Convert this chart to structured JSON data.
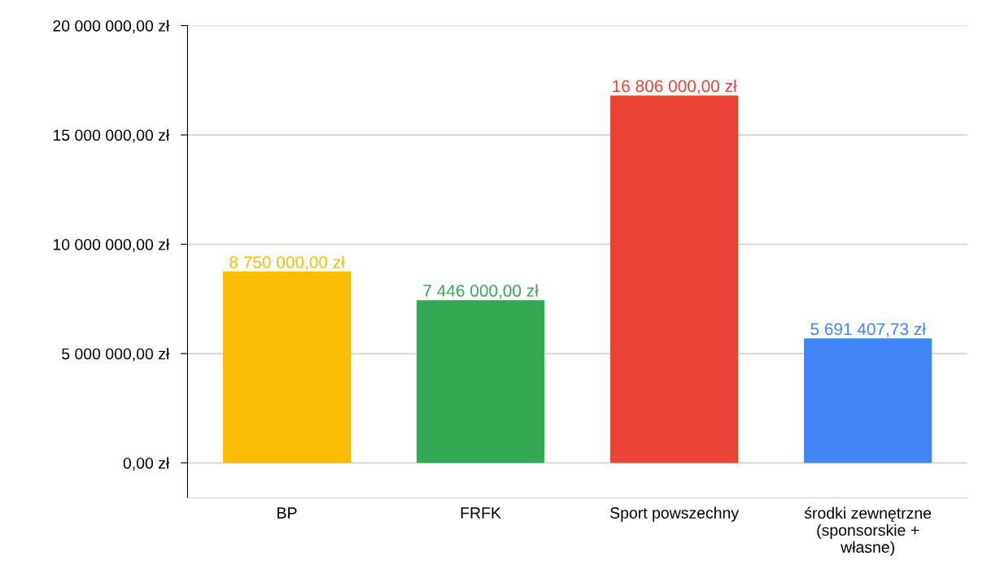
{
  "chart_data": {
    "type": "bar",
    "categories": [
      "BP",
      "FRFK",
      "Sport powszechny",
      "środki zewnętrzne\n(sponsorskie +\nwłasne)"
    ],
    "values": [
      8750000,
      7446000,
      16806000,
      5691407.73
    ],
    "colors": [
      "#fbbc04",
      "#34a853",
      "#ea4335",
      "#4285f4"
    ],
    "value_labels": [
      "8 750 000,00 zł",
      "7 446 000,00 zł",
      "16 806 000,00 zł",
      "5 691 407,73 zł"
    ],
    "ylim": [
      -1600000,
      20000000
    ],
    "yticks": [
      {
        "value": 0,
        "label": "0,00 zł"
      },
      {
        "value": 5000000,
        "label": "5 000 000,00 zł"
      },
      {
        "value": 10000000,
        "label": "10 000 000,00 zł"
      },
      {
        "value": 15000000,
        "label": "15 000 000,00 zł"
      },
      {
        "value": 20000000,
        "label": "20 000 000,00 zł"
      }
    ],
    "grid": "y"
  }
}
